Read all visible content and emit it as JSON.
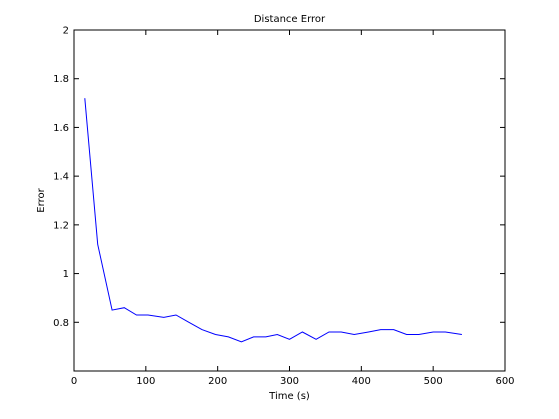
{
  "chart_data": {
    "type": "line",
    "title": "Distance Error",
    "xlabel": "Time (s)",
    "ylabel": "Error",
    "xlim": [
      0,
      600
    ],
    "ylim": [
      0.6,
      2
    ],
    "xticks": [
      0,
      100,
      200,
      300,
      400,
      500,
      600
    ],
    "yticks": [
      0.8,
      1,
      1.2,
      1.4,
      1.6,
      1.8,
      2
    ],
    "xtick_labels": [
      "0",
      "100",
      "200",
      "300",
      "400",
      "500",
      "600"
    ],
    "ytick_labels": [
      "0.8",
      "1",
      "1.2",
      "1.4",
      "1.6",
      "1.8",
      "2"
    ],
    "grid": false,
    "series": [
      {
        "color": "#0000ff",
        "x": [
          15,
          33,
          53,
          70,
          87,
          103,
          125,
          142,
          160,
          178,
          197,
          215,
          233,
          250,
          267,
          283,
          300,
          318,
          337,
          355,
          372,
          390,
          410,
          427,
          445,
          463,
          480,
          500,
          517,
          540
        ],
        "y": [
          1.72,
          1.12,
          0.85,
          0.86,
          0.83,
          0.83,
          0.82,
          0.83,
          0.8,
          0.77,
          0.75,
          0.74,
          0.72,
          0.74,
          0.74,
          0.75,
          0.73,
          0.76,
          0.73,
          0.76,
          0.76,
          0.75,
          0.76,
          0.77,
          0.77,
          0.75,
          0.75,
          0.76,
          0.76,
          0.75
        ]
      }
    ]
  }
}
